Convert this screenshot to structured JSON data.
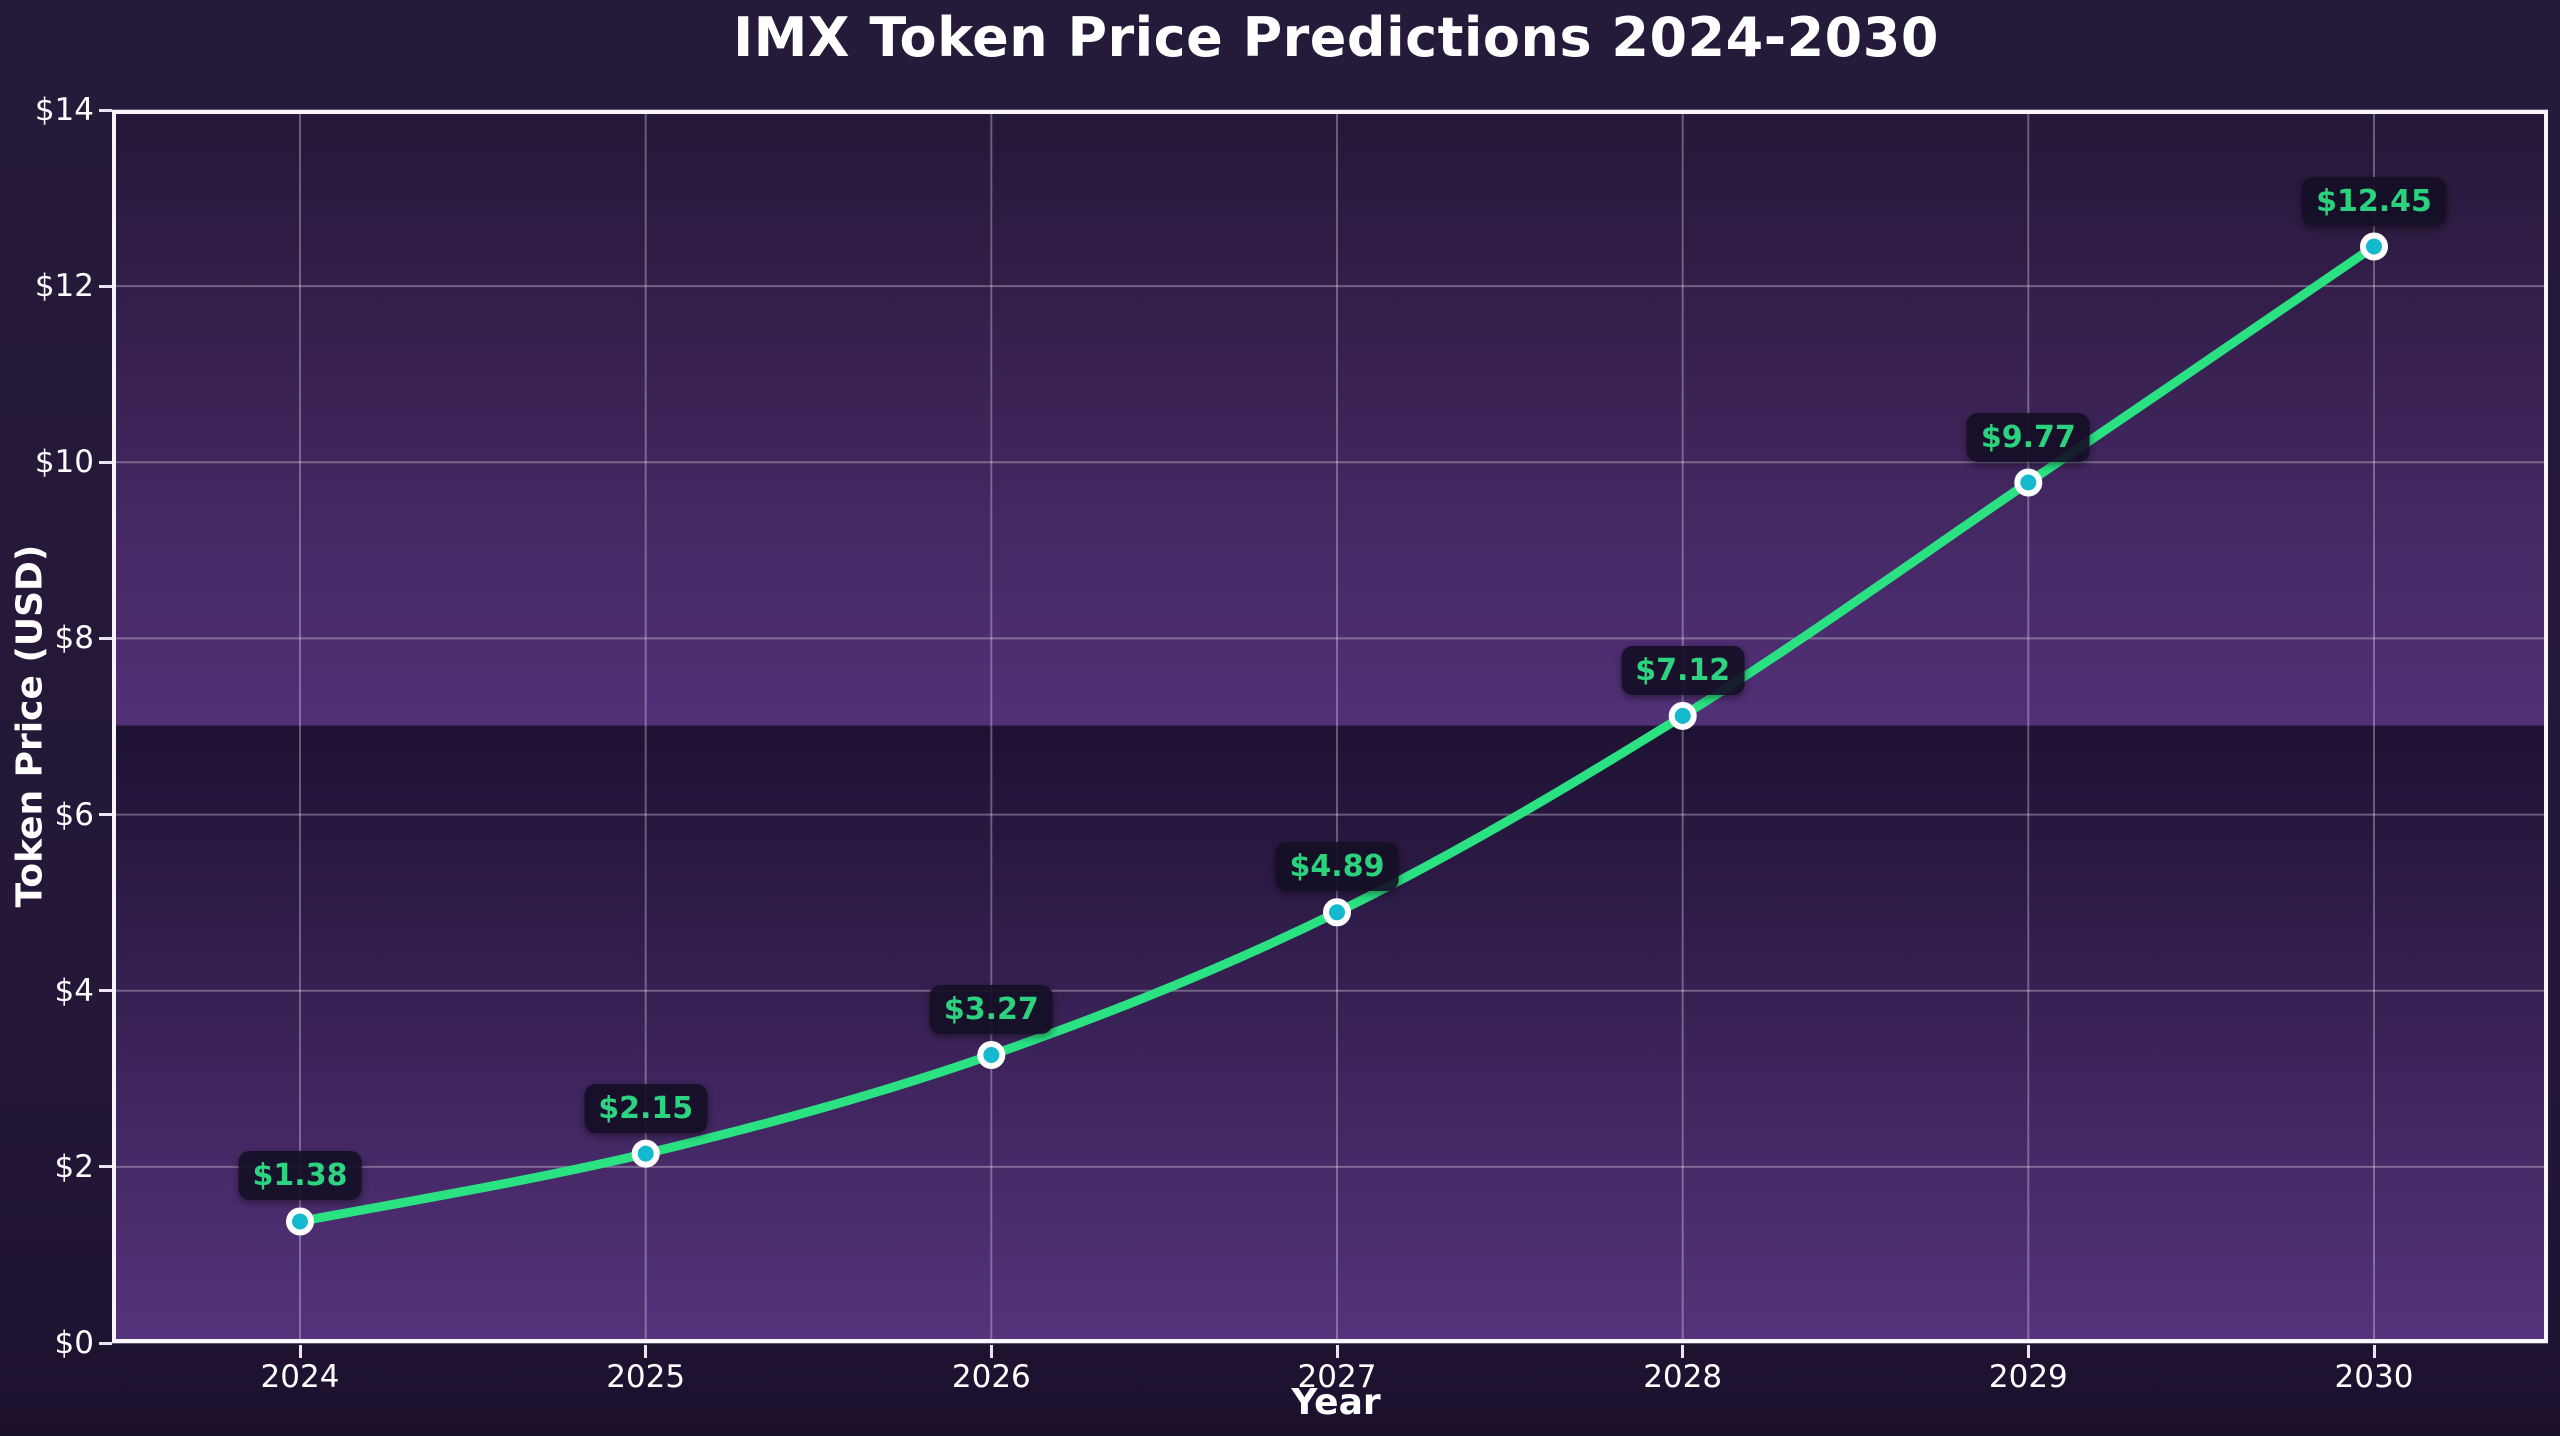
{
  "title": "IMX Token Price Predictions 2024-2030",
  "chart_data": {
    "type": "line",
    "title": "IMX Token Price Predictions 2024-2030",
    "xlabel": "Year",
    "ylabel": "Token Price (USD)",
    "categories": [
      2024,
      2025,
      2026,
      2027,
      2028,
      2029,
      2030
    ],
    "values": [
      1.38,
      2.15,
      3.27,
      4.89,
      7.12,
      9.77,
      12.45
    ],
    "point_labels": [
      "$1.38",
      "$2.15",
      "$3.27",
      "$4.89",
      "$7.12",
      "$9.77",
      "$12.45"
    ],
    "xtick_labels": [
      "2024",
      "2025",
      "2026",
      "2027",
      "2028",
      "2029",
      "2030"
    ],
    "ytick_values": [
      0,
      2,
      4,
      6,
      8,
      10,
      12,
      14
    ],
    "ytick_labels": [
      "$0",
      "$2",
      "$4",
      "$6",
      "$8",
      "$10",
      "$12",
      "$14"
    ],
    "ylim": [
      0,
      14
    ],
    "grid": true,
    "legend": false,
    "smooth_curve": true
  },
  "colors": {
    "line": "#2BE283",
    "marker": "#14B9CD",
    "marker_edge": "#FFFFFF",
    "label_text": "#2BE283",
    "label_bg": "#150F26",
    "spine": "#F7F5FA",
    "band1_top": "#251737",
    "band1_bottom": "#533078",
    "band2_top": "#1E1233",
    "band2_bottom": "#56337C"
  }
}
